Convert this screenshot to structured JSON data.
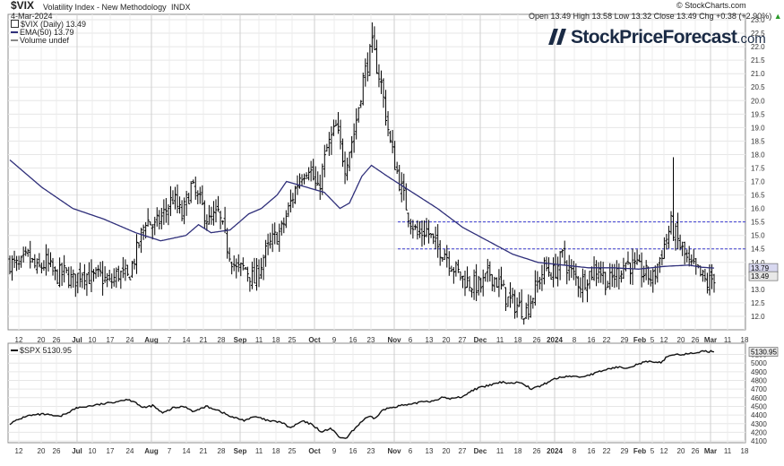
{
  "header": {
    "symbol": "$VIX",
    "name": "Volatility Index - New Methodology",
    "exchange": "INDX",
    "date": "4-Mar-2024",
    "ohlc": "Open 13.49  High 13.58  Low 13.32  Close 13.49  Chg +0.38 (+2.90%)",
    "ohlc_marker": "▲",
    "credit": "© StockCharts.com",
    "legend_price": "$VIX (Daily) 13.49",
    "legend_ema": "EMA(50) 13.79",
    "legend_volume": "Volume undef"
  },
  "brand": {
    "name": "StockPriceForecast",
    "domain": ".com"
  },
  "chart_data": [
    {
      "type": "ohlc",
      "title": "$VIX (Daily) 13.49",
      "ylim": [
        11.5,
        23.2
      ],
      "yticks": [
        12.0,
        12.5,
        13.0,
        13.5,
        14.0,
        14.5,
        15.0,
        15.5,
        16.0,
        16.5,
        17.0,
        17.5,
        18.0,
        18.5,
        19.0,
        19.5,
        20.0,
        20.5,
        21.0,
        21.5,
        22.0,
        22.5,
        23.0
      ],
      "last_label": "13.49",
      "ema_label": "13.79",
      "hlines": [
        15.5,
        14.5
      ],
      "x_labels": [
        "12",
        "20",
        "26",
        "Jul",
        "10",
        "17",
        "24",
        "Aug",
        "7",
        "14",
        "21",
        "28",
        "Sep",
        "11",
        "18",
        "25",
        "Oct",
        "9",
        "16",
        "23",
        "Nov",
        "6",
        "13",
        "20",
        "27",
        "Dec",
        "11",
        "18",
        "26",
        "2024",
        "8",
        "16",
        "22",
        "29",
        "Feb",
        "5",
        "12",
        "20",
        "26",
        "Mar",
        "11",
        "18"
      ],
      "x_label_pos": [
        21,
        46,
        63,
        86,
        103,
        123,
        145,
        169,
        189,
        208,
        227,
        247,
        268,
        289,
        308,
        326,
        351,
        373,
        394,
        414,
        440,
        458,
        479,
        498,
        516,
        536,
        558,
        578,
        599,
        619,
        641,
        660,
        677,
        697,
        714,
        728,
        741,
        760,
        776,
        793,
        812,
        831
      ],
      "major_labels": [
        "Jul",
        "Aug",
        "Sep",
        "Oct",
        "Nov",
        "Dec",
        "2024",
        "Feb",
        "Mar"
      ],
      "close_anchors": [
        [
          0,
          14.0
        ],
        [
          4,
          13.8
        ],
        [
          8,
          14.2
        ],
        [
          12,
          13.7
        ],
        [
          16,
          14.0
        ],
        [
          20,
          13.5
        ],
        [
          24,
          13.6
        ],
        [
          28,
          13.3
        ],
        [
          32,
          13.7
        ],
        [
          36,
          13.4
        ],
        [
          40,
          13.5
        ],
        [
          44,
          13.2
        ],
        [
          48,
          13.6
        ],
        [
          52,
          13.4
        ],
        [
          56,
          14.4
        ],
        [
          60,
          15.6
        ],
        [
          64,
          15.3
        ],
        [
          68,
          15.8
        ],
        [
          72,
          16.4
        ],
        [
          76,
          15.7
        ],
        [
          80,
          16.8
        ],
        [
          84,
          16.2
        ],
        [
          88,
          15.5
        ],
        [
          92,
          15.8
        ],
        [
          96,
          14.6
        ],
        [
          100,
          13.7
        ],
        [
          104,
          13.8
        ],
        [
          108,
          13.3
        ],
        [
          112,
          14.2
        ],
        [
          116,
          14.8
        ],
        [
          120,
          15.2
        ],
        [
          124,
          16.2
        ],
        [
          128,
          17.2
        ],
        [
          132,
          17.6
        ],
        [
          136,
          16.6
        ],
        [
          140,
          18.2
        ],
        [
          144,
          19.0
        ],
        [
          148,
          17.6
        ],
        [
          152,
          18.8
        ],
        [
          156,
          20.8
        ],
        [
          160,
          22.0
        ],
        [
          164,
          20.6
        ],
        [
          168,
          18.4
        ],
        [
          172,
          17.0
        ],
        [
          176,
          15.8
        ],
        [
          180,
          15.0
        ],
        [
          184,
          15.2
        ],
        [
          188,
          14.6
        ],
        [
          192,
          14.4
        ],
        [
          196,
          13.8
        ],
        [
          200,
          13.4
        ],
        [
          204,
          13.2
        ],
        [
          208,
          13.1
        ],
        [
          212,
          13.6
        ],
        [
          216,
          13.2
        ],
        [
          220,
          12.6
        ],
        [
          224,
          12.4
        ],
        [
          228,
          12.2
        ],
        [
          232,
          13.0
        ],
        [
          236,
          13.8
        ],
        [
          240,
          13.6
        ],
        [
          244,
          14.2
        ],
        [
          248,
          13.6
        ],
        [
          252,
          13.2
        ],
        [
          256,
          13.6
        ],
        [
          260,
          13.8
        ],
        [
          264,
          13.2
        ],
        [
          268,
          13.6
        ],
        [
          272,
          14.0
        ],
        [
          276,
          13.8
        ],
        [
          280,
          13.6
        ],
        [
          284,
          13.4
        ],
        [
          288,
          14.4
        ],
        [
          292,
          15.4
        ],
        [
          296,
          14.6
        ],
        [
          300,
          13.9
        ],
        [
          304,
          13.6
        ],
        [
          308,
          13.2
        ],
        [
          311,
          13.49
        ]
      ],
      "ema_anchors": [
        [
          0,
          17.8
        ],
        [
          20,
          16.8
        ],
        [
          40,
          16.0
        ],
        [
          60,
          15.6
        ],
        [
          80,
          15.1
        ],
        [
          96,
          14.8
        ],
        [
          112,
          15.0
        ],
        [
          120,
          15.4
        ],
        [
          128,
          15.1
        ],
        [
          140,
          15.2
        ],
        [
          152,
          15.8
        ],
        [
          160,
          16.0
        ],
        [
          170,
          16.5
        ],
        [
          176,
          17.0
        ],
        [
          188,
          16.8
        ],
        [
          200,
          16.6
        ],
        [
          210,
          16.0
        ],
        [
          216,
          16.2
        ],
        [
          224,
          17.2
        ],
        [
          230,
          17.6
        ],
        [
          240,
          17.2
        ],
        [
          256,
          16.6
        ],
        [
          272,
          16.0
        ],
        [
          288,
          15.3
        ],
        [
          304,
          14.8
        ],
        [
          320,
          14.3
        ],
        [
          336,
          14.0
        ],
        [
          352,
          13.9
        ],
        [
          368,
          13.8
        ],
        [
          384,
          13.8
        ],
        [
          400,
          13.75
        ],
        [
          416,
          13.85
        ],
        [
          432,
          13.9
        ],
        [
          440,
          13.82
        ],
        [
          448,
          13.79
        ]
      ]
    },
    {
      "type": "line",
      "title": "$SPX 5130.95",
      "ylim": [
        4080,
        5230
      ],
      "yticks": [
        4100,
        4200,
        4300,
        4400,
        4500,
        4600,
        4700,
        4800,
        4900,
        5000,
        5100
      ],
      "last_label": "5130.95",
      "x_labels": [
        "12",
        "20",
        "26",
        "Jul",
        "10",
        "17",
        "24",
        "Aug",
        "7",
        "14",
        "21",
        "28",
        "Sep",
        "11",
        "18",
        "25",
        "Oct",
        "9",
        "16",
        "23",
        "Nov",
        "6",
        "13",
        "20",
        "27",
        "Dec",
        "11",
        "18",
        "26",
        "2024",
        "8",
        "16",
        "22",
        "29",
        "Feb",
        "5",
        "12",
        "20",
        "26",
        "Mar",
        "11",
        "18"
      ],
      "anchors": [
        [
          0,
          4300
        ],
        [
          20,
          4390
        ],
        [
          40,
          4410
        ],
        [
          60,
          4380
        ],
        [
          80,
          4480
        ],
        [
          100,
          4510
        ],
        [
          120,
          4540
        ],
        [
          140,
          4580
        ],
        [
          150,
          4560
        ],
        [
          160,
          4480
        ],
        [
          172,
          4510
        ],
        [
          184,
          4420
        ],
        [
          196,
          4480
        ],
        [
          210,
          4500
        ],
        [
          222,
          4440
        ],
        [
          236,
          4500
        ],
        [
          250,
          4460
        ],
        [
          266,
          4380
        ],
        [
          282,
          4340
        ],
        [
          296,
          4380
        ],
        [
          312,
          4330
        ],
        [
          326,
          4320
        ],
        [
          338,
          4250
        ],
        [
          352,
          4330
        ],
        [
          364,
          4290
        ],
        [
          376,
          4200
        ],
        [
          386,
          4250
        ],
        [
          396,
          4150
        ],
        [
          404,
          4120
        ],
        [
          414,
          4230
        ],
        [
          424,
          4330
        ],
        [
          432,
          4380
        ],
        [
          440,
          4360
        ],
        [
          448,
          4450
        ],
        [
          456,
          4480
        ],
        [
          470,
          4510
        ],
        [
          484,
          4520
        ],
        [
          496,
          4560
        ],
        [
          508,
          4560
        ],
        [
          520,
          4600
        ],
        [
          532,
          4590
        ],
        [
          544,
          4610
        ],
        [
          560,
          4700
        ],
        [
          576,
          4740
        ],
        [
          592,
          4780
        ],
        [
          604,
          4770
        ],
        [
          616,
          4780
        ],
        [
          628,
          4700
        ],
        [
          640,
          4740
        ],
        [
          656,
          4820
        ],
        [
          672,
          4850
        ],
        [
          688,
          4840
        ],
        [
          704,
          4880
        ],
        [
          716,
          4920
        ],
        [
          728,
          4950
        ],
        [
          744,
          4950
        ],
        [
          760,
          5000
        ],
        [
          768,
          5020
        ],
        [
          776,
          5000
        ],
        [
          784,
          5010
        ],
        [
          792,
          5080
        ],
        [
          800,
          5100
        ],
        [
          812,
          5100
        ],
        [
          820,
          5110
        ],
        [
          830,
          5130
        ],
        [
          840,
          5137
        ],
        [
          848,
          5130.95
        ]
      ]
    }
  ]
}
